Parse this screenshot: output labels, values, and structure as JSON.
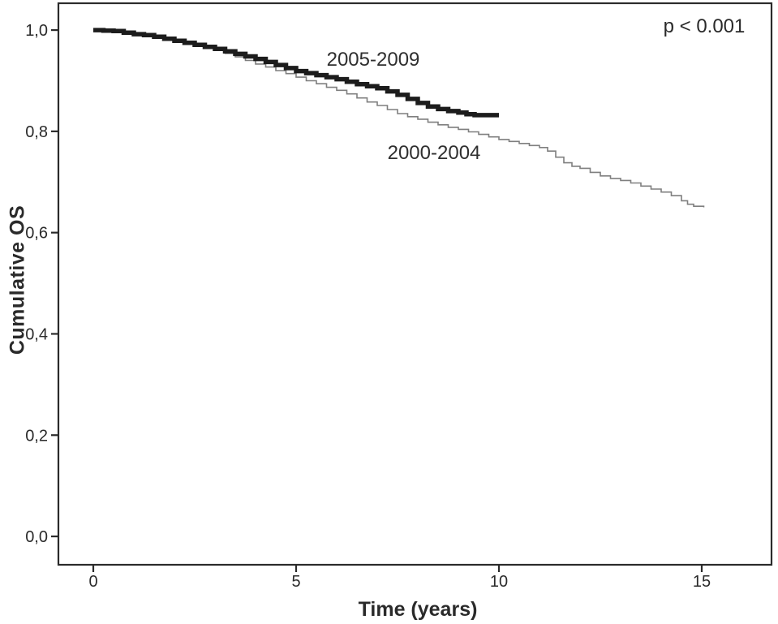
{
  "chart_data": {
    "type": "line",
    "subtype": "kaplan-meier-step-curves",
    "title": "",
    "xlabel": "Time (years)",
    "ylabel": "Cumulative OS",
    "annotation": {
      "text": "p < 0.001",
      "position": "top-right"
    },
    "xlim": [
      -0.86,
      16.72
    ],
    "ylim": [
      -0.056,
      1.053
    ],
    "grid": false,
    "legend_position": "inline-curve-labels",
    "x_ticks": {
      "values": [
        0,
        5,
        10,
        15
      ],
      "labels": [
        "0",
        "5",
        "10",
        "15"
      ]
    },
    "y_ticks": {
      "values": [
        0.0,
        0.2,
        0.4,
        0.6,
        0.8,
        1.0
      ],
      "labels": [
        "0,0",
        "0,2",
        "0,4",
        "0,6",
        "0,8",
        "1,0"
      ]
    },
    "frame_color": "#2b2b2b",
    "background_color": "#ffffff",
    "series": [
      {
        "name": "2000-2004",
        "color": "#7f7f7f",
        "stroke_width": 1.6,
        "label_anchor": [
          8.4,
          0.756
        ],
        "points": [
          [
            0,
            1.0
          ],
          [
            0.25,
            0.999
          ],
          [
            0.5,
            0.997
          ],
          [
            0.75,
            0.995
          ],
          [
            1.0,
            0.992
          ],
          [
            1.25,
            0.989
          ],
          [
            1.5,
            0.986
          ],
          [
            1.75,
            0.982
          ],
          [
            2.0,
            0.978
          ],
          [
            2.25,
            0.974
          ],
          [
            2.5,
            0.97
          ],
          [
            2.75,
            0.966
          ],
          [
            3.0,
            0.961
          ],
          [
            3.25,
            0.954
          ],
          [
            3.5,
            0.947
          ],
          [
            3.75,
            0.94
          ],
          [
            4.0,
            0.933
          ],
          [
            4.25,
            0.927
          ],
          [
            4.5,
            0.92
          ],
          [
            4.75,
            0.914
          ],
          [
            5.0,
            0.907
          ],
          [
            5.25,
            0.9
          ],
          [
            5.5,
            0.894
          ],
          [
            5.75,
            0.887
          ],
          [
            6.0,
            0.881
          ],
          [
            6.25,
            0.874
          ],
          [
            6.5,
            0.866
          ],
          [
            6.75,
            0.858
          ],
          [
            7.0,
            0.851
          ],
          [
            7.25,
            0.843
          ],
          [
            7.5,
            0.835
          ],
          [
            7.75,
            0.829
          ],
          [
            8.0,
            0.824
          ],
          [
            8.25,
            0.818
          ],
          [
            8.5,
            0.813
          ],
          [
            8.75,
            0.808
          ],
          [
            9.0,
            0.804
          ],
          [
            9.25,
            0.799
          ],
          [
            9.5,
            0.794
          ],
          [
            9.75,
            0.789
          ],
          [
            10.0,
            0.784
          ],
          [
            10.25,
            0.78
          ],
          [
            10.5,
            0.776
          ],
          [
            10.75,
            0.772
          ],
          [
            11.0,
            0.768
          ],
          [
            11.2,
            0.761
          ],
          [
            11.4,
            0.749
          ],
          [
            11.6,
            0.738
          ],
          [
            11.8,
            0.731
          ],
          [
            12.0,
            0.727
          ],
          [
            12.25,
            0.719
          ],
          [
            12.5,
            0.712
          ],
          [
            12.75,
            0.707
          ],
          [
            13.0,
            0.703
          ],
          [
            13.25,
            0.698
          ],
          [
            13.5,
            0.692
          ],
          [
            13.75,
            0.686
          ],
          [
            14.0,
            0.68
          ],
          [
            14.25,
            0.673
          ],
          [
            14.5,
            0.663
          ],
          [
            14.65,
            0.656
          ],
          [
            14.8,
            0.652
          ],
          [
            15.05,
            0.65
          ]
        ]
      },
      {
        "name": "2005-2009",
        "color": "#1c1c1c",
        "stroke_width": 5.5,
        "label_anchor": [
          6.9,
          0.941
        ],
        "points": [
          [
            0,
            1.0
          ],
          [
            0.25,
            0.999
          ],
          [
            0.5,
            0.998
          ],
          [
            0.75,
            0.995
          ],
          [
            1.0,
            0.992
          ],
          [
            1.25,
            0.99
          ],
          [
            1.5,
            0.987
          ],
          [
            1.75,
            0.983
          ],
          [
            2.0,
            0.979
          ],
          [
            2.25,
            0.975
          ],
          [
            2.5,
            0.971
          ],
          [
            2.75,
            0.967
          ],
          [
            3.0,
            0.963
          ],
          [
            3.25,
            0.958
          ],
          [
            3.5,
            0.953
          ],
          [
            3.75,
            0.948
          ],
          [
            4.0,
            0.943
          ],
          [
            4.25,
            0.937
          ],
          [
            4.5,
            0.931
          ],
          [
            4.75,
            0.925
          ],
          [
            5.0,
            0.919
          ],
          [
            5.25,
            0.915
          ],
          [
            5.5,
            0.911
          ],
          [
            5.75,
            0.907
          ],
          [
            6.0,
            0.903
          ],
          [
            6.25,
            0.898
          ],
          [
            6.5,
            0.893
          ],
          [
            6.75,
            0.889
          ],
          [
            7.0,
            0.885
          ],
          [
            7.25,
            0.879
          ],
          [
            7.5,
            0.872
          ],
          [
            7.75,
            0.864
          ],
          [
            8.0,
            0.856
          ],
          [
            8.25,
            0.849
          ],
          [
            8.5,
            0.844
          ],
          [
            8.75,
            0.84
          ],
          [
            9.0,
            0.837
          ],
          [
            9.2,
            0.834
          ],
          [
            9.4,
            0.832
          ],
          [
            10.0,
            0.832
          ]
        ]
      }
    ]
  }
}
